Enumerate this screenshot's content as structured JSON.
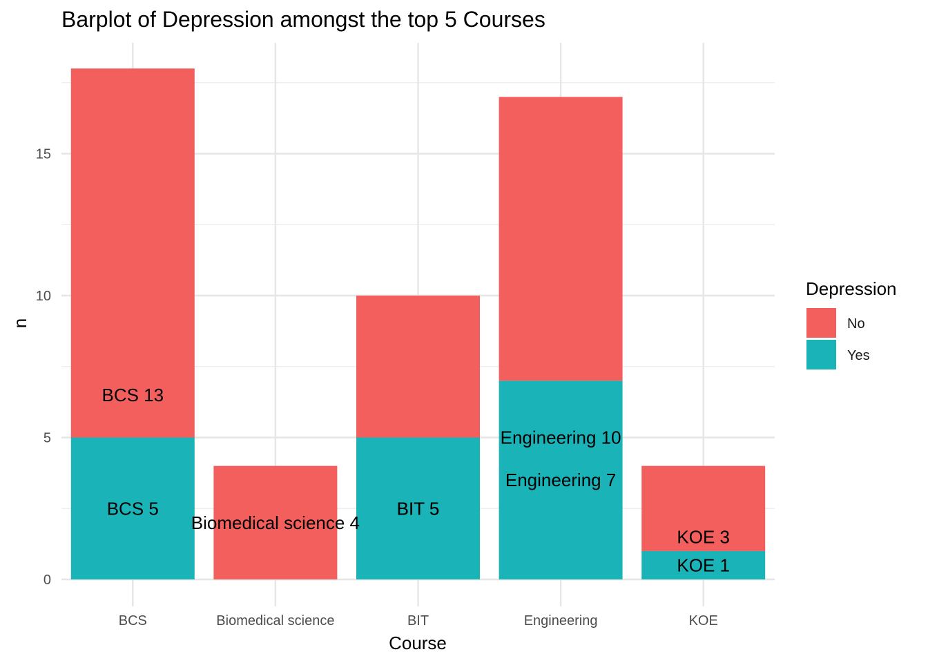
{
  "chart_data": {
    "type": "bar",
    "stacked": true,
    "title": "Barplot of Depression amongst the top 5 Courses",
    "xlabel": "Course",
    "ylabel": "n",
    "categories": [
      "BCS",
      "Biomedical science",
      "BIT",
      "Engineering",
      "KOE"
    ],
    "ylim": [
      0,
      19
    ],
    "yticks": [
      0,
      5,
      10,
      15
    ],
    "grid": true,
    "legend": {
      "title": "Depression",
      "position": "right",
      "entries": [
        "No",
        "Yes"
      ]
    },
    "series": [
      {
        "name": "No",
        "color": "#F8766D",
        "fill": "#F25F5C",
        "values": [
          13,
          4,
          5,
          10,
          3
        ]
      },
      {
        "name": "Yes",
        "color": "#00BFC4",
        "fill": "#1AB3B8",
        "values": [
          5,
          0,
          5,
          7,
          1
        ]
      }
    ],
    "bar_labels": {
      "No": [
        "BCS 13",
        "Biomedical science 4",
        "BIT 5",
        "Engineering 10",
        "KOE 3"
      ],
      "Yes": [
        "BCS 5",
        "",
        "BIT 5",
        "Engineering 7",
        "KOE 1"
      ]
    }
  }
}
